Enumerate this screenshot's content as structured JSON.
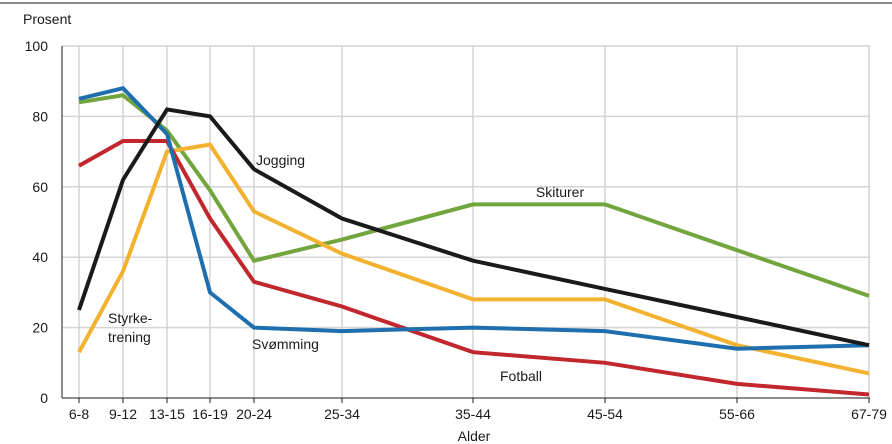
{
  "chart_data": {
    "type": "line",
    "title": "",
    "xlabel": "Alder",
    "ylabel": "Prosent",
    "ylim": [
      0,
      100
    ],
    "yticks": [
      0,
      20,
      40,
      60,
      80,
      100
    ],
    "categories": [
      "6-8",
      "9-12",
      "13-15",
      "16-19",
      "20-24",
      "25-34",
      "35-44",
      "45-54",
      "55-66",
      "67-79"
    ],
    "grid": true,
    "series": [
      {
        "name": "Skiturer",
        "color": "#72a53e",
        "values": [
          84,
          86,
          76,
          59,
          39,
          45,
          55,
          55,
          42,
          29
        ]
      },
      {
        "name": "Styrke-trening",
        "color": "#f2b12e",
        "values": [
          13,
          36,
          70,
          72,
          53,
          41,
          28,
          28,
          15,
          7
        ]
      },
      {
        "name": "Fotball",
        "color": "#c1272d",
        "values": [
          66,
          73,
          73,
          51,
          33,
          26,
          13,
          10,
          4,
          1
        ]
      },
      {
        "name": "Svømming",
        "color": "#1f6fae",
        "values": [
          85,
          88,
          75,
          30,
          20,
          19,
          20,
          19,
          14,
          15
        ]
      },
      {
        "name": "Jogging",
        "color": "#1a1a1a",
        "values": [
          25,
          62,
          82,
          80,
          65,
          51,
          39,
          31,
          23,
          15
        ]
      }
    ],
    "labels": {
      "jogging": "Jogging",
      "skiturer": "Skiturer",
      "styrke_line1": "Styrke-",
      "styrke_line2": "trening",
      "svomming": "Svømming",
      "fotball": "Fotball"
    }
  }
}
